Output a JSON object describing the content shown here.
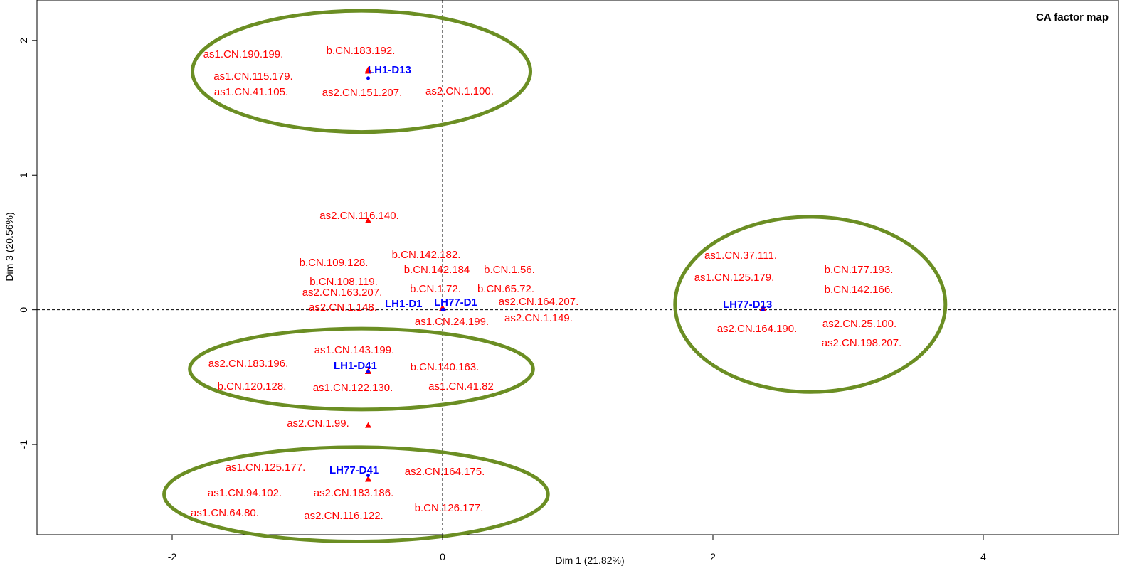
{
  "chart_data": {
    "type": "scatter",
    "title": "CA factor map",
    "xlabel": "Dim 1 (21.82%)",
    "ylabel": "Dim 3 (20.56%)",
    "xlim": [
      -3.0,
      5.0
    ],
    "ylim": [
      -1.67,
      2.3
    ],
    "x_ticks": [
      -2,
      0,
      2,
      4
    ],
    "y_ticks": [
      -1,
      0,
      1,
      2
    ],
    "x_tick_labels": [
      "-2",
      "0",
      "2",
      "4"
    ],
    "y_tick_labels": [
      "-1",
      "0",
      "1",
      "2"
    ],
    "reference_lines": {
      "x": 0,
      "y": 0,
      "style": "dashed"
    },
    "colors": {
      "rows": "#0000ff",
      "columns": "#ff0000",
      "ellipses": "#6b8e23"
    },
    "series": [
      {
        "kind": "rows",
        "color": "#0000ff",
        "points": [
          {
            "label": "LH1-D13",
            "x": -0.55,
            "y": 1.72
          },
          {
            "label": "LH1-D1",
            "x": 0.0,
            "y": 0.0
          },
          {
            "label": "LH77-D1",
            "x": 0.01,
            "y": 0.0
          },
          {
            "label": "LH1-D41",
            "x": -0.55,
            "y": -0.46
          },
          {
            "label": "LH77-D13",
            "x": 2.37,
            "y": 0.0
          },
          {
            "label": "LH77-D41",
            "x": -0.55,
            "y": -1.23
          }
        ]
      },
      {
        "kind": "columns",
        "color": "#ff0000",
        "points": [
          {
            "label": "as1.CN.190.199.",
            "x": -0.55,
            "y": 1.77
          },
          {
            "label": "b.CN.183.192.",
            "x": -0.55,
            "y": 1.78
          },
          {
            "label": "as1.CN.115.179.",
            "x": -0.55,
            "y": 1.77
          },
          {
            "label": "as1.CN.41.105.",
            "x": -0.55,
            "y": 1.77
          },
          {
            "label": "as2.CN.151.207.",
            "x": -0.55,
            "y": 1.77
          },
          {
            "label": "as2.CN.1.100.",
            "x": -0.55,
            "y": 1.77
          },
          {
            "label": "as2.CN.116.140.",
            "x": -0.55,
            "y": 0.66
          },
          {
            "label": "b.CN.109.128.",
            "x": 0.0,
            "y": 0.01
          },
          {
            "label": "b.CN.142.182.",
            "x": 0.0,
            "y": 0.01
          },
          {
            "label": "b.CN.142.184",
            "x": 0.0,
            "y": 0.01
          },
          {
            "label": "b.CN.1.56.",
            "x": 0.0,
            "y": 0.01
          },
          {
            "label": "b.CN.108.119.",
            "x": 0.0,
            "y": 0.01
          },
          {
            "label": "as2.CN.163.207.",
            "x": 0.0,
            "y": 0.01
          },
          {
            "label": "b.CN.1.72.",
            "x": 0.0,
            "y": 0.01
          },
          {
            "label": "b.CN.65.72.",
            "x": 0.0,
            "y": 0.01
          },
          {
            "label": "as2.CN.1.148.",
            "x": 0.0,
            "y": 0.01
          },
          {
            "label": "as2.CN.164.207.",
            "x": 0.0,
            "y": 0.01
          },
          {
            "label": "as1.CN.24.199.",
            "x": 0.0,
            "y": 0.01
          },
          {
            "label": "as2.CN.1.149.",
            "x": 0.0,
            "y": 0.01
          },
          {
            "label": "as1.CN.37.111.",
            "x": 2.37,
            "y": 0.01
          },
          {
            "label": "as1.CN.125.179.",
            "x": 2.37,
            "y": 0.01
          },
          {
            "label": "b.CN.177.193.",
            "x": 2.37,
            "y": 0.01
          },
          {
            "label": "b.CN.142.166.",
            "x": 2.37,
            "y": 0.01
          },
          {
            "label": "as2.CN.164.190.",
            "x": 2.37,
            "y": 0.01
          },
          {
            "label": "as2.CN.25.100.",
            "x": 2.37,
            "y": 0.01
          },
          {
            "label": "as2.CN.198.207.",
            "x": 2.37,
            "y": 0.01
          },
          {
            "label": "as1.CN.143.199.",
            "x": -0.55,
            "y": -0.46
          },
          {
            "label": "as2.CN.183.196.",
            "x": -0.55,
            "y": -0.46
          },
          {
            "label": "b.CN.140.163.",
            "x": -0.55,
            "y": -0.46
          },
          {
            "label": "b.CN.120.128.",
            "x": -0.55,
            "y": -0.46
          },
          {
            "label": "as1.CN.122.130.",
            "x": -0.55,
            "y": -0.46
          },
          {
            "label": "as1.CN.41.82",
            "x": -0.55,
            "y": -0.46
          },
          {
            "label": "as2.CN.1.99.",
            "x": -0.55,
            "y": -0.86
          },
          {
            "label": "as1.CN.125.177.",
            "x": -0.55,
            "y": -1.26
          },
          {
            "label": "as2.CN.164.175.",
            "x": -0.55,
            "y": -1.26
          },
          {
            "label": "as1.CN.94.102.",
            "x": -0.55,
            "y": -1.26
          },
          {
            "label": "as2.CN.183.186.",
            "x": -0.55,
            "y": -1.26
          },
          {
            "label": "as1.CN.64.80.",
            "x": -0.55,
            "y": -1.26
          },
          {
            "label": "as2.CN.116.122.",
            "x": -0.55,
            "y": -1.26
          },
          {
            "label": "b.CN.126.177.",
            "x": -0.55,
            "y": -1.26
          }
        ]
      }
    ],
    "ellipses": [
      {
        "cx": -0.6,
        "cy": 1.77,
        "rx": 1.25,
        "ry": 0.45
      },
      {
        "cx": 2.72,
        "cy": 0.04,
        "rx": 1.0,
        "ry": 0.65
      },
      {
        "cx": -0.6,
        "cy": -0.44,
        "rx": 1.27,
        "ry": 0.3
      },
      {
        "cx": -0.64,
        "cy": -1.37,
        "rx": 1.42,
        "ry": 0.35
      }
    ]
  }
}
